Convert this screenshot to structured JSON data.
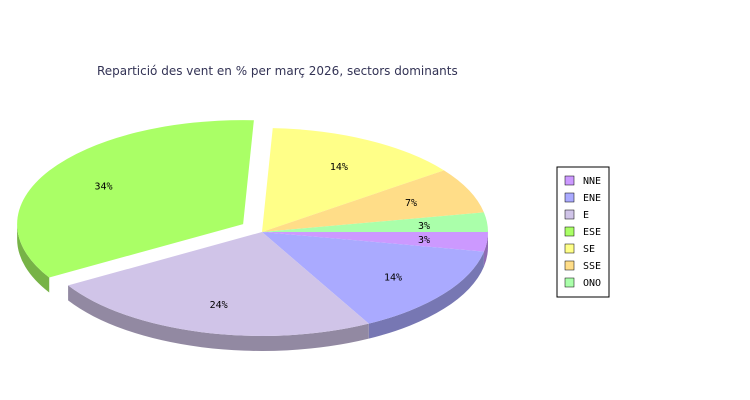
{
  "chart_data": {
    "type": "pie",
    "title": "Repartició des vent en % per març 2026, sectors dominants",
    "legend_position": "right",
    "slices": [
      {
        "name": "NNE",
        "value": 3,
        "label": "3%",
        "color": "#cc99ff"
      },
      {
        "name": "ENE",
        "value": 14,
        "label": "14%",
        "color": "#aaaaff"
      },
      {
        "name": "E",
        "value": 24,
        "label": "24%",
        "color": "#d0c4e8"
      },
      {
        "name": "ESE",
        "value": 34,
        "label": "34%",
        "color": "#aaff66",
        "exploded": true
      },
      {
        "name": "SE",
        "value": 14,
        "label": "14%",
        "color": "#ffff88"
      },
      {
        "name": "SSE",
        "value": 7,
        "label": "7%",
        "color": "#ffdd88"
      },
      {
        "name": "ONO",
        "value": 3,
        "label": "3%",
        "color": "#aaffaa"
      }
    ]
  }
}
